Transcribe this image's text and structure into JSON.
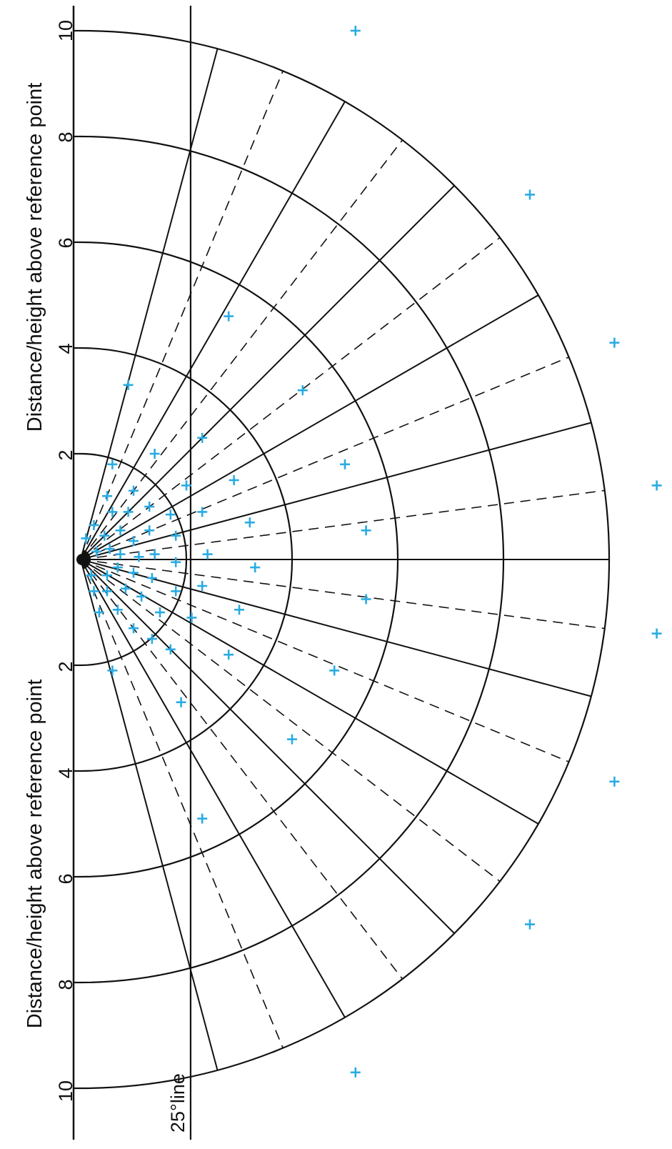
{
  "labels": {
    "axis_upper": "Distance/height above reference point",
    "axis_lower": "Distance/height above reference point",
    "line_25": "25°line"
  },
  "ticks": {
    "upper": [
      "10",
      "8",
      "6",
      "4",
      "2"
    ],
    "lower": [
      "2",
      "4",
      "6",
      "8",
      "10"
    ]
  },
  "colors": {
    "line": "#111111",
    "marker": "#29ABE2"
  },
  "grid": {
    "unit_arcs": [
      2,
      4,
      6,
      8,
      10
    ],
    "solid_radial_angles_deg": [
      -75,
      -60,
      -45,
      -30,
      -15,
      0,
      15,
      30,
      45,
      60,
      75
    ],
    "dashed_radial_angles_deg": [
      -67.5,
      -52.5,
      -37.5,
      -22.5,
      -7.5,
      7.5,
      22.5,
      37.5,
      52.5,
      67.5
    ]
  },
  "points": [
    {
      "x": 5.2,
      "y": 10.0
    },
    {
      "x": 8.5,
      "y": 6.9
    },
    {
      "x": 10.1,
      "y": 4.1
    },
    {
      "x": 10.9,
      "y": 1.4
    },
    {
      "x": 10.9,
      "y": -1.4
    },
    {
      "x": 10.1,
      "y": -4.2
    },
    {
      "x": 8.5,
      "y": -6.9
    },
    {
      "x": 5.2,
      "y": -9.7
    },
    {
      "x": 2.8,
      "y": 4.6
    },
    {
      "x": 4.2,
      "y": 3.2
    },
    {
      "x": 5.0,
      "y": 1.8
    },
    {
      "x": 5.4,
      "y": 0.55
    },
    {
      "x": 5.4,
      "y": -0.75
    },
    {
      "x": 4.8,
      "y": -2.1
    },
    {
      "x": 4.0,
      "y": -3.4
    },
    {
      "x": 2.3,
      "y": -4.9
    },
    {
      "x": 2.3,
      "y": 2.3
    },
    {
      "x": 2.9,
      "y": 1.5
    },
    {
      "x": 3.2,
      "y": 0.7
    },
    {
      "x": 3.3,
      "y": -0.15
    },
    {
      "x": 3.0,
      "y": -0.95
    },
    {
      "x": 2.8,
      "y": -1.8
    },
    {
      "x": 1.9,
      "y": -2.7
    },
    {
      "x": 0.9,
      "y": 3.3
    },
    {
      "x": 0.6,
      "y": 1.8
    },
    {
      "x": 1.4,
      "y": 2.0
    },
    {
      "x": 2.0,
      "y": 1.4
    },
    {
      "x": 2.3,
      "y": 0.9
    },
    {
      "x": 2.4,
      "y": 0.1
    },
    {
      "x": 2.3,
      "y": -0.5
    },
    {
      "x": 2.1,
      "y": -1.1
    },
    {
      "x": 1.7,
      "y": -1.7
    },
    {
      "x": 0.6,
      "y": -2.1
    },
    {
      "x": 1.0,
      "y": 1.3
    },
    {
      "x": 1.3,
      "y": 1.0
    },
    {
      "x": 1.7,
      "y": 0.85
    },
    {
      "x": 1.8,
      "y": 0.45
    },
    {
      "x": 1.8,
      "y": -0.05
    },
    {
      "x": 1.8,
      "y": -0.6
    },
    {
      "x": 1.5,
      "y": -1.0
    },
    {
      "x": 1.0,
      "y": -1.3
    },
    {
      "x": 0.5,
      "y": 1.2
    },
    {
      "x": 0.6,
      "y": 0.9
    },
    {
      "x": 0.9,
      "y": 0.9
    },
    {
      "x": 1.3,
      "y": 0.55
    },
    {
      "x": 1.4,
      "y": 0.1
    },
    {
      "x": 1.35,
      "y": -0.35
    },
    {
      "x": 1.15,
      "y": -0.7
    },
    {
      "x": 0.7,
      "y": -0.95
    },
    {
      "x": 0.35,
      "y": -1.0
    },
    {
      "x": 0.25,
      "y": 0.65
    },
    {
      "x": 0.45,
      "y": 0.45
    },
    {
      "x": 0.75,
      "y": 0.55
    },
    {
      "x": 1.0,
      "y": 0.35
    },
    {
      "x": 1.1,
      "y": 0.05
    },
    {
      "x": 1.0,
      "y": -0.25
    },
    {
      "x": 0.85,
      "y": -0.55
    },
    {
      "x": 0.5,
      "y": -0.6
    },
    {
      "x": 0.25,
      "y": -0.6
    },
    {
      "x": 0.1,
      "y": 0.4
    },
    {
      "x": 0.3,
      "y": 0.15
    },
    {
      "x": 0.55,
      "y": 0.2
    },
    {
      "x": 0.75,
      "y": 0.1
    },
    {
      "x": 0.7,
      "y": -0.15
    },
    {
      "x": 0.5,
      "y": -0.3
    },
    {
      "x": 0.2,
      "y": -0.3
    },
    {
      "x": 1.35,
      "y": -1.5
    }
  ]
}
